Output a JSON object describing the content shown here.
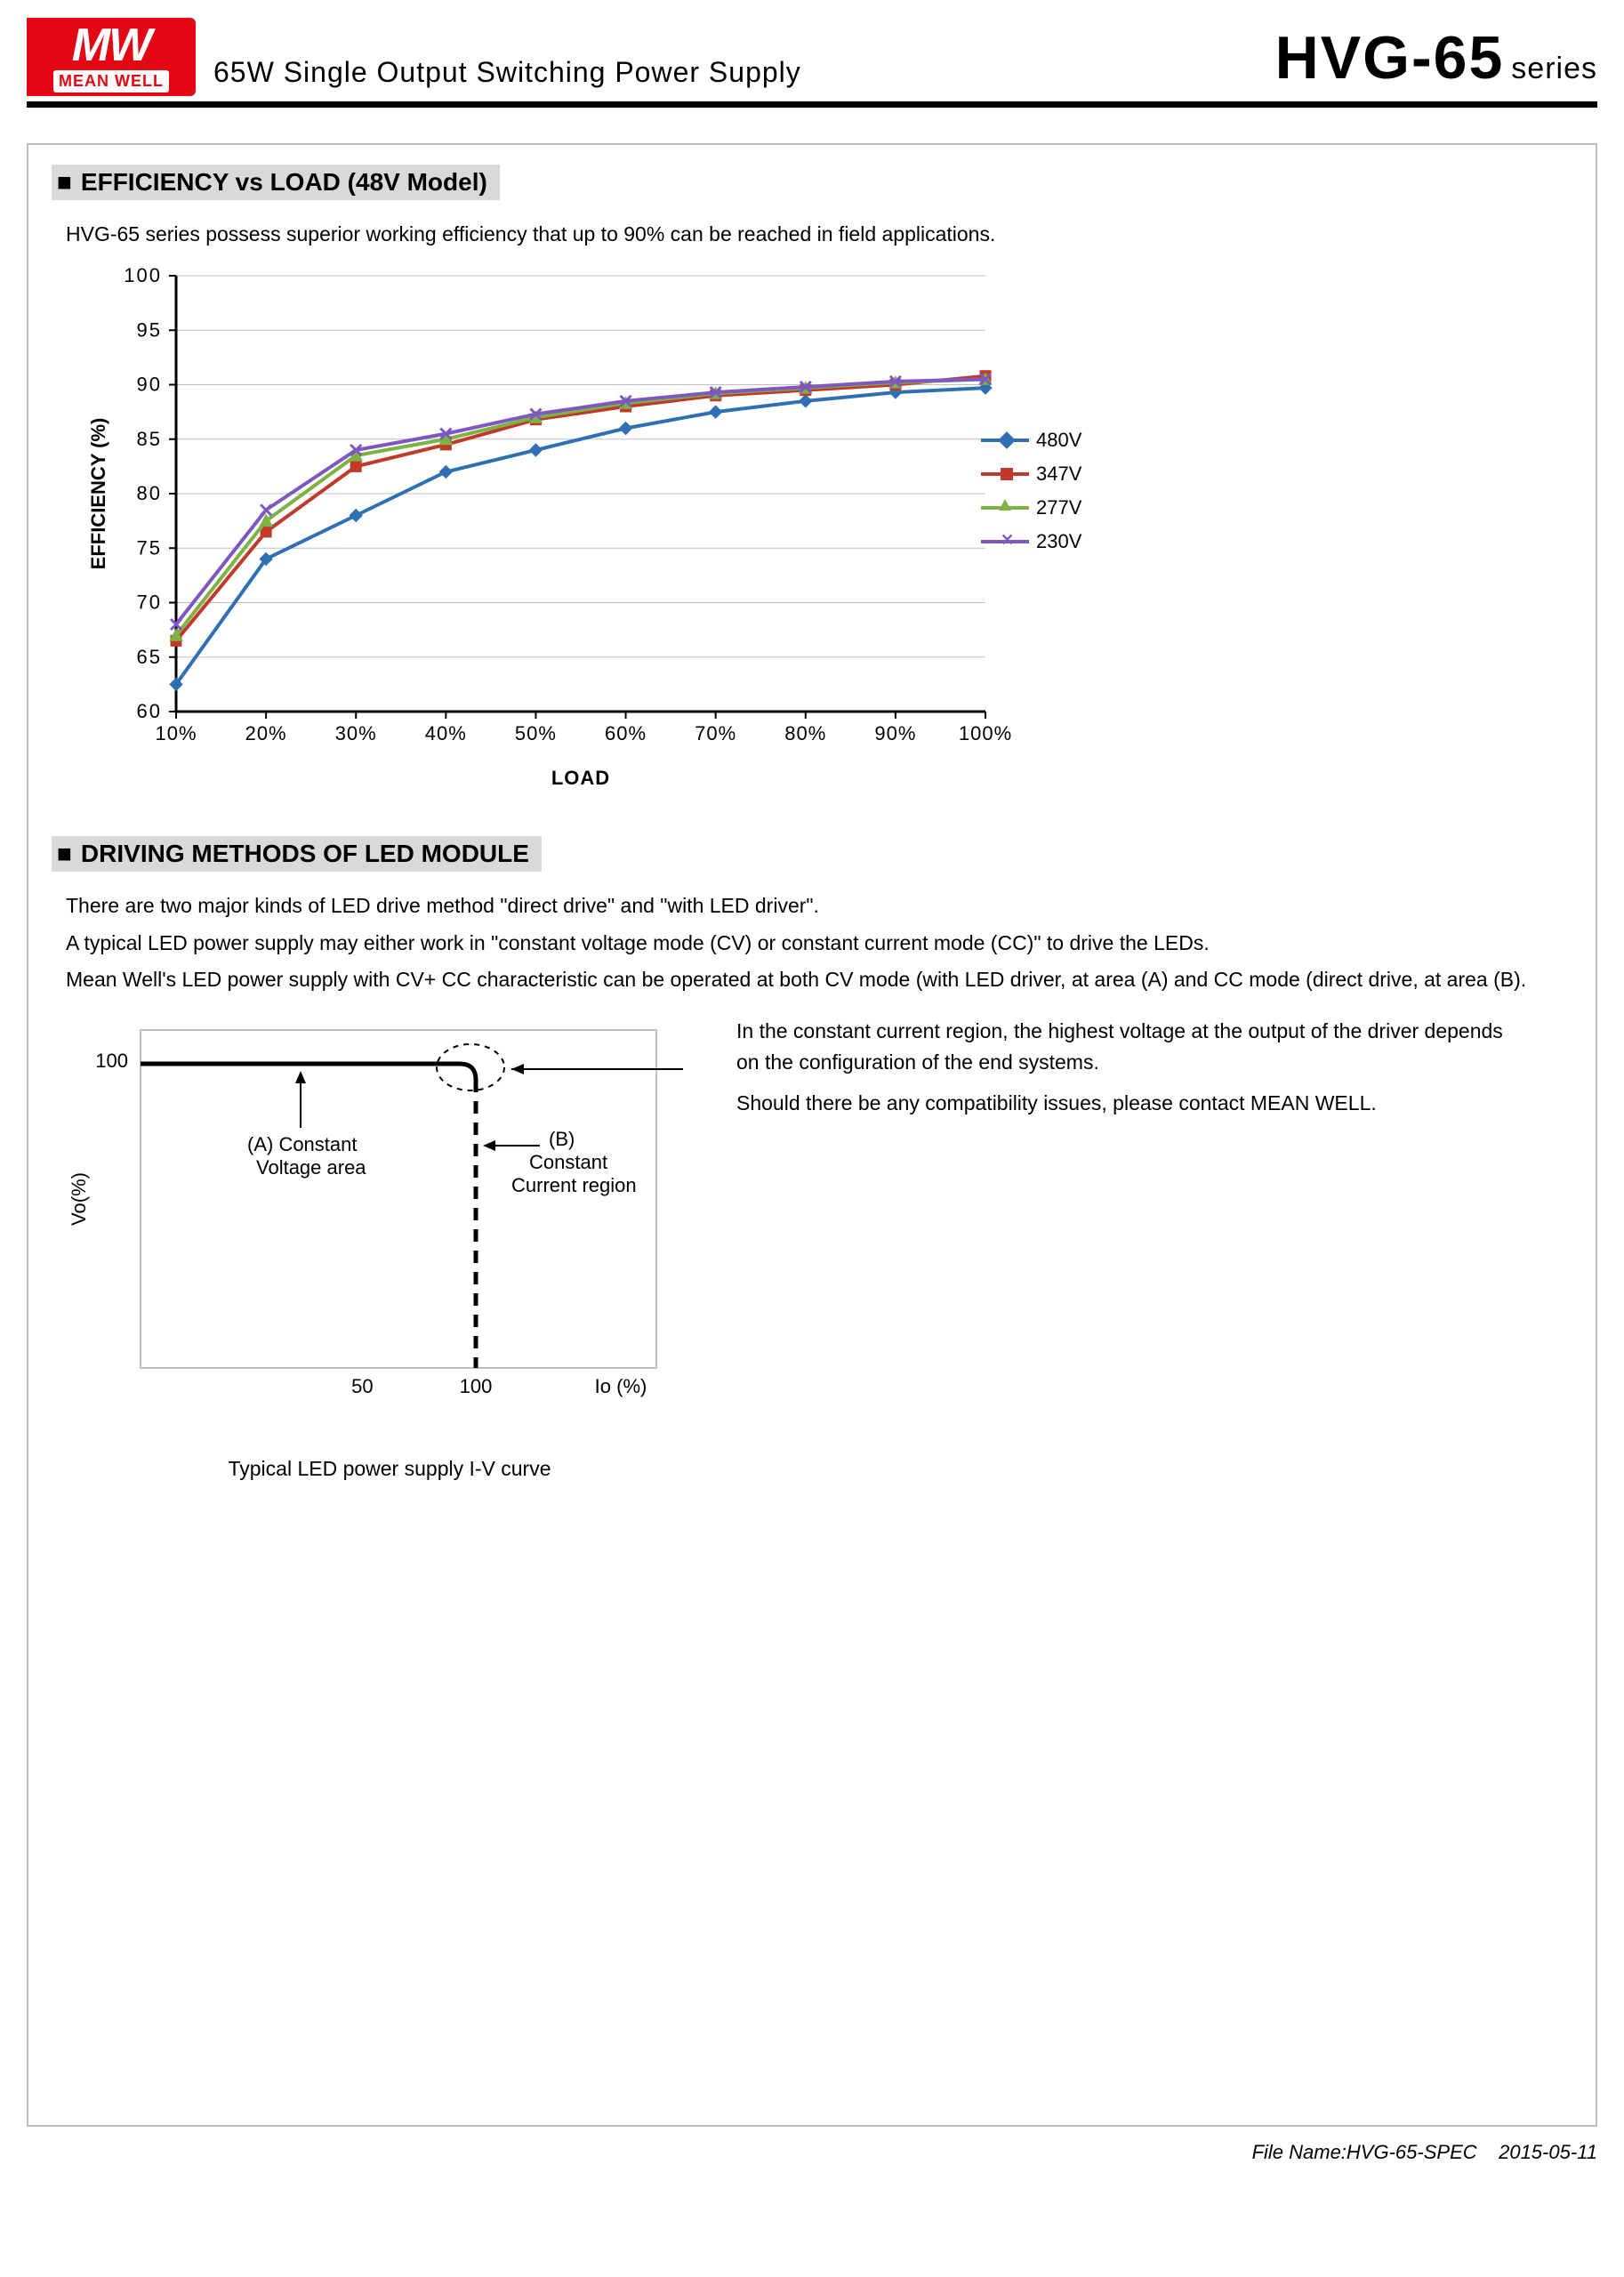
{
  "header": {
    "logo_main": "MW",
    "logo_sub": "MEAN WELL",
    "subtitle": "65W Single Output Switching Power Supply",
    "model": "HVG-65",
    "series_label": "series"
  },
  "section1": {
    "title": "EFFICIENCY vs LOAD (48V Model)",
    "intro": "HVG-65 series possess superior working efficiency that up to 90% can be reached in field applications.",
    "chart": {
      "type": "line",
      "xlabel": "LOAD",
      "ylabel": "EFFICIENCY (%)",
      "x_categories": [
        "10%",
        "20%",
        "30%",
        "40%",
        "50%",
        "60%",
        "70%",
        "80%",
        "90%",
        "100%"
      ],
      "y_ticks": [
        60,
        65,
        70,
        75,
        80,
        85,
        90,
        95,
        100
      ],
      "ylim": [
        60,
        100
      ],
      "grid_color": "#bfbfbf",
      "axis_color": "#000000",
      "label_fontsize": 22,
      "tick_fontsize": 22,
      "series": [
        {
          "name": "480V",
          "color": "#2f6fb3",
          "marker": "diamond",
          "values": [
            62.5,
            74.0,
            78.0,
            82.0,
            84.0,
            86.0,
            87.5,
            88.5,
            89.3,
            89.7
          ]
        },
        {
          "name": "347V",
          "color": "#c0392b",
          "marker": "square",
          "values": [
            66.5,
            76.5,
            82.5,
            84.5,
            86.8,
            88.0,
            89.0,
            89.5,
            90.0,
            90.8
          ]
        },
        {
          "name": "277V",
          "color": "#7cb342",
          "marker": "triangle",
          "values": [
            67.0,
            77.5,
            83.5,
            85.0,
            87.0,
            88.3,
            89.2,
            89.7,
            90.2,
            90.5
          ]
        },
        {
          "name": "230V",
          "color": "#7e57c2",
          "marker": "x",
          "values": [
            68.0,
            78.5,
            84.0,
            85.5,
            87.3,
            88.5,
            89.3,
            89.8,
            90.3,
            90.5
          ]
        }
      ]
    }
  },
  "section2": {
    "title": "DRIVING METHODS OF LED MODULE",
    "para1": "There are two major kinds of LED drive method \"direct drive\" and \"with LED driver\".",
    "para2": "A typical LED power supply may either work in \"constant voltage mode (CV) or constant current mode (CC)\" to drive the LEDs.",
    "para3": "Mean Well's LED power supply with CV+ CC characteristic can be operated at both CV mode (with LED driver, at area (A) and CC mode (direct drive, at area (B).",
    "right1": "In the constant current region, the highest voltage at the output of the driver depends on the configuration of the end systems.",
    "right2": "Should there be any compatibility issues, please contact MEAN WELL.",
    "iv": {
      "ylabel": "Vo(%)",
      "xlabel": "Io (%)",
      "y_ticks": [
        100
      ],
      "x_ticks": [
        50,
        100
      ],
      "labelA": "(A)   Constant\nVoltage area",
      "labelB": "(B)\nConstant\nCurrent region",
      "caption": "Typical LED power supply I-V curve",
      "axis_color": "#000000",
      "border_color": "#bfbfbf"
    }
  },
  "footer": {
    "filename": "File Name:HVG-65-SPEC",
    "date": "2015-05-11"
  }
}
